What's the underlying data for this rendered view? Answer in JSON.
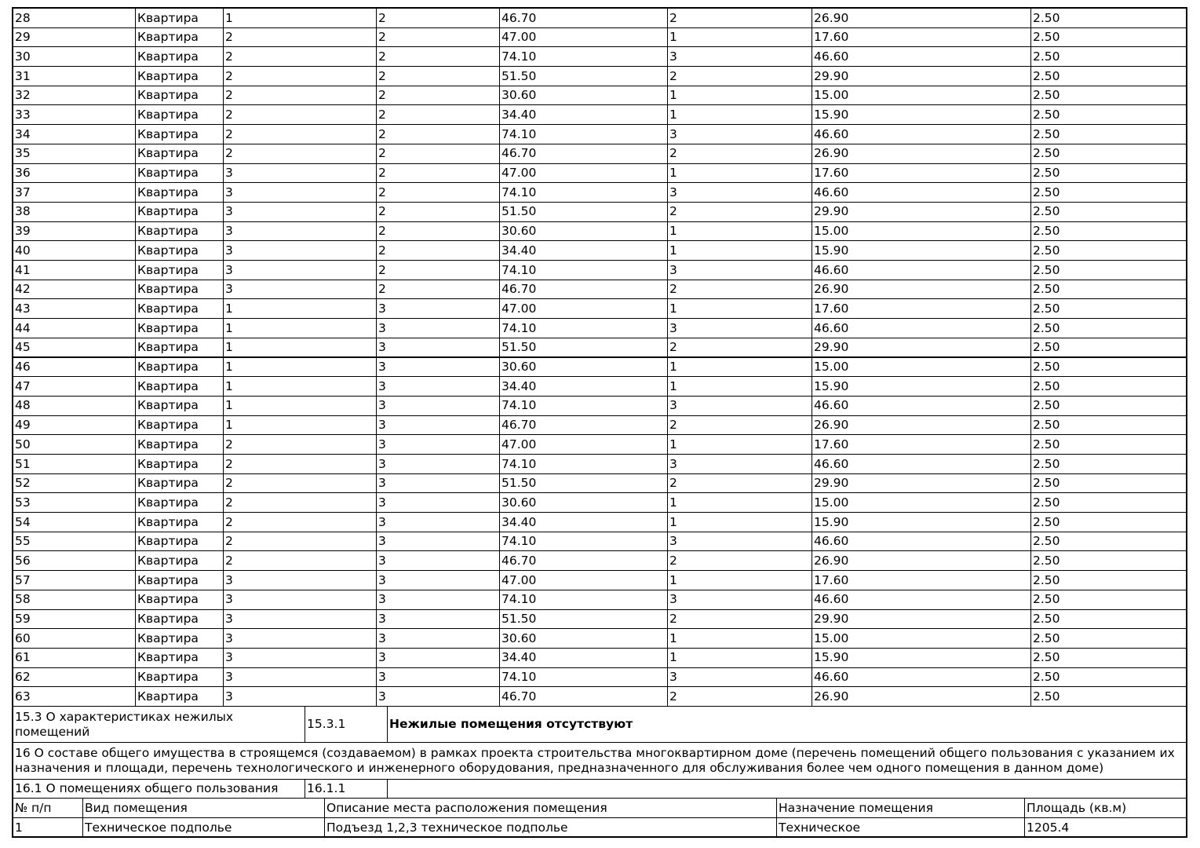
{
  "table": {
    "rows": [
      [
        "28",
        "Квартира",
        "1",
        "2",
        "46.70",
        "2",
        "26.90",
        "2.50"
      ],
      [
        "29",
        "Квартира",
        "2",
        "2",
        "47.00",
        "1",
        "17.60",
        "2.50"
      ],
      [
        "30",
        "Квартира",
        "2",
        "2",
        "74.10",
        "3",
        "46.60",
        "2.50"
      ],
      [
        "31",
        "Квартира",
        "2",
        "2",
        "51.50",
        "2",
        "29.90",
        "2.50"
      ],
      [
        "32",
        "Квартира",
        "2",
        "2",
        "30.60",
        "1",
        "15.00",
        "2.50"
      ],
      [
        "33",
        "Квартира",
        "2",
        "2",
        "34.40",
        "1",
        "15.90",
        "2.50"
      ],
      [
        "34",
        "Квартира",
        "2",
        "2",
        "74.10",
        "3",
        "46.60",
        "2.50"
      ],
      [
        "35",
        "Квартира",
        "2",
        "2",
        "46.70",
        "2",
        "26.90",
        "2.50"
      ],
      [
        "36",
        "Квартира",
        "3",
        "2",
        "47.00",
        "1",
        "17.60",
        "2.50"
      ],
      [
        "37",
        "Квартира",
        "3",
        "2",
        "74.10",
        "3",
        "46.60",
        "2.50"
      ],
      [
        "38",
        "Квартира",
        "3",
        "2",
        "51.50",
        "2",
        "29.90",
        "2.50"
      ],
      [
        "39",
        "Квартира",
        "3",
        "2",
        "30.60",
        "1",
        "15.00",
        "2.50"
      ],
      [
        "40",
        "Квартира",
        "3",
        "2",
        "34.40",
        "1",
        "15.90",
        "2.50"
      ],
      [
        "41",
        "Квартира",
        "3",
        "2",
        "74.10",
        "3",
        "46.60",
        "2.50"
      ],
      [
        "42",
        "Квартира",
        "3",
        "2",
        "46.70",
        "2",
        "26.90",
        "2.50"
      ],
      [
        "43",
        "Квартира",
        "1",
        "3",
        "47.00",
        "1",
        "17.60",
        "2.50"
      ],
      [
        "44",
        "Квартира",
        "1",
        "3",
        "74.10",
        "3",
        "46.60",
        "2.50"
      ],
      [
        "45",
        "Квартира",
        "1",
        "3",
        "51.50",
        "2",
        "29.90",
        "2.50"
      ],
      [
        "46",
        "Квартира",
        "1",
        "3",
        "30.60",
        "1",
        "15.00",
        "2.50"
      ],
      [
        "47",
        "Квартира",
        "1",
        "3",
        "34.40",
        "1",
        "15.90",
        "2.50"
      ],
      [
        "48",
        "Квартира",
        "1",
        "3",
        "74.10",
        "3",
        "46.60",
        "2.50"
      ],
      [
        "49",
        "Квартира",
        "1",
        "3",
        "46.70",
        "2",
        "26.90",
        "2.50"
      ],
      [
        "50",
        "Квартира",
        "2",
        "3",
        "47.00",
        "1",
        "17.60",
        "2.50"
      ],
      [
        "51",
        "Квартира",
        "2",
        "3",
        "74.10",
        "3",
        "46.60",
        "2.50"
      ],
      [
        "52",
        "Квартира",
        "2",
        "3",
        "51.50",
        "2",
        "29.90",
        "2.50"
      ],
      [
        "53",
        "Квартира",
        "2",
        "3",
        "30.60",
        "1",
        "15.00",
        "2.50"
      ],
      [
        "54",
        "Квартира",
        "2",
        "3",
        "34.40",
        "1",
        "15.90",
        "2.50"
      ],
      [
        "55",
        "Квартира",
        "2",
        "3",
        "74.10",
        "3",
        "46.60",
        "2.50"
      ],
      [
        "56",
        "Квартира",
        "2",
        "3",
        "46.70",
        "2",
        "26.90",
        "2.50"
      ],
      [
        "57",
        "Квартира",
        "3",
        "3",
        "47.00",
        "1",
        "17.60",
        "2.50"
      ],
      [
        "58",
        "Квартира",
        "3",
        "3",
        "74.10",
        "3",
        "46.60",
        "2.50"
      ],
      [
        "59",
        "Квартира",
        "3",
        "3",
        "51.50",
        "2",
        "29.90",
        "2.50"
      ],
      [
        "60",
        "Квартира",
        "3",
        "3",
        "30.60",
        "1",
        "15.00",
        "2.50"
      ],
      [
        "61",
        "Квартира",
        "3",
        "3",
        "34.40",
        "1",
        "15.90",
        "2.50"
      ],
      [
        "62",
        "Квартира",
        "3",
        "3",
        "74.10",
        "3",
        "46.60",
        "2.50"
      ],
      [
        "63",
        "Квартира",
        "3",
        "3",
        "46.70",
        "2",
        "26.90",
        "2.50"
      ]
    ]
  },
  "section_15_3": {
    "title": "15.3 О характеристиках нежилых помещений",
    "code": "15.3.1",
    "text": "Нежилые помещения отсутствуют"
  },
  "section_16": {
    "title": "16 О составе общего имущества в строящемся (создаваемом) в рамках проекта строительства многоквартирном доме (перечень помещений общего пользования с указанием их назначения и площади, перечень технологического и инженерного оборудования, предназначенного для обслуживания более чем одного помещения в данном доме)"
  },
  "section_16_1": {
    "title": "16.1 О помещениях общего пользования",
    "code": "16.1.1"
  },
  "common_table": {
    "headers": [
      "№ п/п",
      "Вид помещения",
      "Описание места расположения помещения",
      "Назначение помещения",
      "Площадь (кв.м)"
    ],
    "rows": [
      [
        "1",
        "Техническое подполье",
        "Подъезд 1,2,3 техническое подполье",
        "Техническое",
        "1205.4"
      ]
    ]
  }
}
